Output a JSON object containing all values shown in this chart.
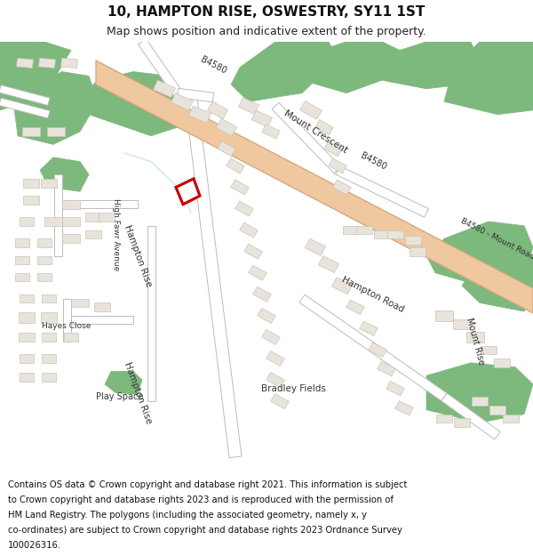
{
  "title": "10, HAMPTON RISE, OSWESTRY, SY11 1ST",
  "subtitle": "Map shows position and indicative extent of the property.",
  "bg_color": "#ffffff",
  "map_bg": "#f5f4f2",
  "road_main_color": "#f0c8a0",
  "road_main_stroke": "#d4a882",
  "road_minor_color": "#ffffff",
  "road_minor_stroke": "#bbbbbb",
  "green_color": "#7db87d",
  "building_color": "#e8e4dc",
  "building_stroke": "#c8c4bc",
  "highlight_color": "#cc0000",
  "text_color": "#333333",
  "label_fontsize": 7.5,
  "title_fontsize": 11,
  "subtitle_fontsize": 9,
  "footer_fontsize": 7.2,
  "footer_lines": [
    "Contains OS data © Crown copyright and database right 2021. This information is subject",
    "to Crown copyright and database rights 2023 and is reproduced with the permission of",
    "HM Land Registry. The polygons (including the associated geometry, namely x, y",
    "co-ordinates) are subject to Crown copyright and database rights 2023 Ordnance Survey",
    "100026316."
  ]
}
